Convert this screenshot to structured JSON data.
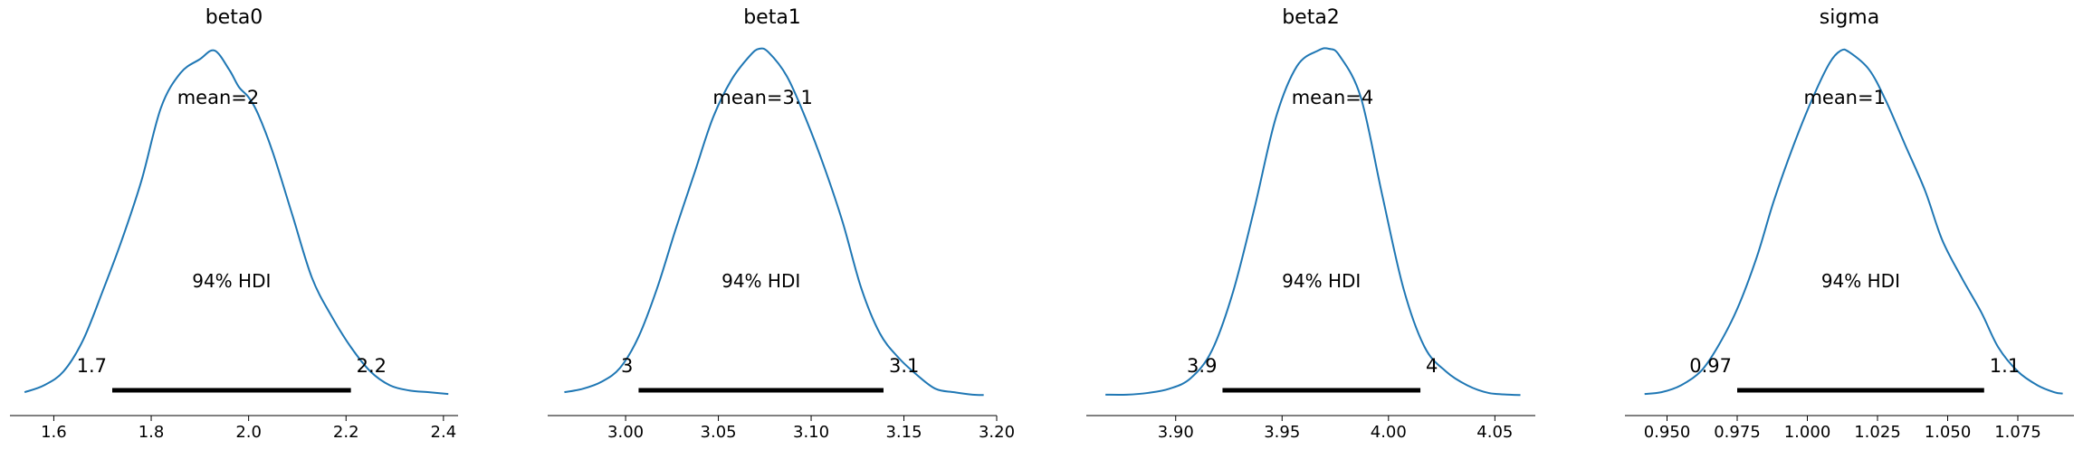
{
  "colors": {
    "density": "#1f77b4",
    "hdi_bar": "#000000",
    "axis": "#000000",
    "text": "#000000"
  },
  "chart_data": [
    {
      "type": "line",
      "title": "beta0",
      "mean_label": "mean=2",
      "hdi_label": "94% HDI",
      "hdi_low_label": "1.7",
      "hdi_high_label": "2.2",
      "hdi": [
        1.72,
        2.21
      ],
      "xlim": [
        1.51,
        2.43
      ],
      "ylim": [
        0,
        1.0
      ],
      "xticks": [
        1.6,
        1.8,
        2.0,
        2.2,
        2.4
      ],
      "xtick_labels": [
        "1.6",
        "1.8",
        "2.0",
        "2.2",
        "2.4"
      ],
      "density": {
        "x": [
          1.54,
          1.58,
          1.62,
          1.66,
          1.7,
          1.74,
          1.78,
          1.82,
          1.86,
          1.9,
          1.93,
          1.96,
          1.98,
          2.0,
          2.02,
          2.05,
          2.09,
          2.13,
          2.17,
          2.21,
          2.25,
          2.29,
          2.33,
          2.37,
          2.41
        ],
        "y": [
          0.01,
          0.03,
          0.07,
          0.16,
          0.3,
          0.45,
          0.62,
          0.83,
          0.93,
          0.97,
          0.995,
          0.94,
          0.89,
          0.86,
          0.81,
          0.7,
          0.52,
          0.34,
          0.23,
          0.14,
          0.07,
          0.03,
          0.015,
          0.01,
          0.005
        ]
      }
    },
    {
      "type": "line",
      "title": "beta1",
      "mean_label": "mean=3.1",
      "hdi_label": "94% HDI",
      "hdi_low_label": "3",
      "hdi_high_label": "3.1",
      "hdi": [
        3.007,
        3.139
      ],
      "xlim": [
        2.958,
        3.2
      ],
      "ylim": [
        0,
        1.0
      ],
      "xticks": [
        3.0,
        3.05,
        3.1,
        3.15,
        3.2
      ],
      "xtick_labels": [
        "3.00",
        "3.05",
        "3.10",
        "3.15",
        "3.20"
      ],
      "density": {
        "x": [
          2.967,
          2.977,
          2.987,
          2.997,
          3.007,
          3.017,
          3.027,
          3.037,
          3.047,
          3.057,
          3.067,
          3.072,
          3.077,
          3.087,
          3.097,
          3.107,
          3.117,
          3.127,
          3.137,
          3.147,
          3.157,
          3.167,
          3.177,
          3.187,
          3.193
        ],
        "y": [
          0.01,
          0.02,
          0.04,
          0.08,
          0.17,
          0.31,
          0.48,
          0.64,
          0.8,
          0.91,
          0.98,
          1.0,
          0.99,
          0.92,
          0.8,
          0.66,
          0.5,
          0.31,
          0.18,
          0.11,
          0.06,
          0.02,
          0.01,
          0.003,
          0.002
        ]
      }
    },
    {
      "type": "line",
      "title": "beta2",
      "mean_label": "mean=4",
      "hdi_label": "94% HDI",
      "hdi_low_label": "3.9",
      "hdi_high_label": "4",
      "hdi": [
        3.922,
        4.015
      ],
      "xlim": [
        3.858,
        4.069
      ],
      "ylim": [
        0,
        1.0
      ],
      "xticks": [
        3.9,
        3.95,
        4.0,
        4.05
      ],
      "xtick_labels": [
        "3.90",
        "3.95",
        "4.00",
        "4.05"
      ],
      "density": {
        "x": [
          3.867,
          3.877,
          3.887,
          3.897,
          3.907,
          3.917,
          3.927,
          3.937,
          3.947,
          3.957,
          3.967,
          3.972,
          3.977,
          3.987,
          3.997,
          4.007,
          4.017,
          4.027,
          4.037,
          4.047,
          4.057,
          4.062
        ],
        "y": [
          0.003,
          0.003,
          0.008,
          0.02,
          0.05,
          0.13,
          0.3,
          0.54,
          0.8,
          0.95,
          0.995,
          1.0,
          0.98,
          0.86,
          0.58,
          0.31,
          0.14,
          0.07,
          0.03,
          0.008,
          0.003,
          0.002
        ]
      }
    },
    {
      "type": "line",
      "title": "sigma",
      "mean_label": "mean=1",
      "hdi_label": "94% HDI",
      "hdi_low_label": "0.97",
      "hdi_high_label": "1.1",
      "hdi": [
        0.975,
        1.063
      ],
      "xlim": [
        0.935,
        1.095
      ],
      "ylim": [
        0,
        1.0
      ],
      "xticks": [
        0.95,
        0.975,
        1.0,
        1.025,
        1.05,
        1.075
      ],
      "xtick_labels": [
        "0.950",
        "0.975",
        "1.000",
        "1.025",
        "1.050",
        "1.075"
      ],
      "density": {
        "x": [
          0.942,
          0.948,
          0.955,
          0.962,
          0.968,
          0.975,
          0.982,
          0.988,
          0.995,
          1.002,
          1.008,
          1.012,
          1.015,
          1.022,
          1.028,
          1.035,
          1.042,
          1.048,
          1.055,
          1.062,
          1.068,
          1.075,
          1.082,
          1.088,
          1.091
        ],
        "y": [
          0.005,
          0.01,
          0.03,
          0.07,
          0.14,
          0.25,
          0.4,
          0.56,
          0.72,
          0.86,
          0.96,
          0.995,
          0.99,
          0.94,
          0.85,
          0.72,
          0.59,
          0.45,
          0.34,
          0.24,
          0.14,
          0.07,
          0.03,
          0.01,
          0.006
        ]
      }
    }
  ]
}
